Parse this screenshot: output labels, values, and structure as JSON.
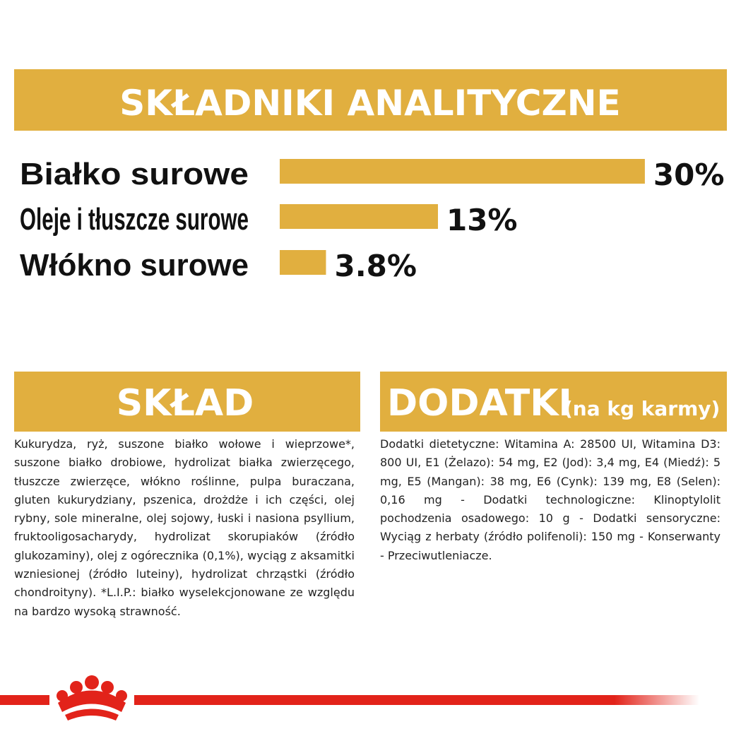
{
  "chart_data": {
    "type": "bar",
    "title": "SKŁADNIKI ANALITYCZNE",
    "categories": [
      "Białko surowe",
      "Oleje i tłuszcze surowe",
      "Włókno surowe"
    ],
    "values": [
      30,
      13,
      3.8
    ],
    "value_labels": [
      "30%",
      "13%",
      "3.8%"
    ],
    "color": "#e1af3f"
  },
  "composition": {
    "title": "SKŁAD",
    "text": "Kukurydza, ryż, suszone białko wołowe i wieprzowe*, suszone białko drobiowe, hydrolizat białka zwierzęcego, tłuszcze zwierzęce, włókno roślinne, pulpa buraczana, gluten kukurydziany, pszenica, drożdże i ich części, olej rybny, sole mineralne, olej sojowy, łuski i nasiona psyllium, fruktooligosacharydy, hydrolizat skorupiaków (źródło glukozaminy), olej z ogórecznika (0,1%), wyciąg z aksamitki wzniesionej (źródło luteiny), hydrolizat chrząstki (źródło chondroityny). *L.I.P.: białko wyselekcjonowane ze względu na bardzo wysoką strawność."
  },
  "additives": {
    "title": "DODATKI",
    "subtitle": "(na kg karmy)",
    "text": "Dodatki dietetyczne: Witamina A: 28500 UI, Witamina D3: 800 UI, E1 (Żelazo): 54 mg, E2 (Jod): 3,4 mg, E4 (Miedź): 5 mg, E5 (Mangan): 38 mg, E6 (Cynk): 139 mg, E8 (Selen): 0,16 mg - Dodatki technologiczne: Klinoptylolit pochodzenia osadowego: 10 g - Dodatki sensoryczne: Wyciąg z herbaty (źródło polifenoli): 150 mg - Konserwanty - Przeciwutleniacze."
  }
}
